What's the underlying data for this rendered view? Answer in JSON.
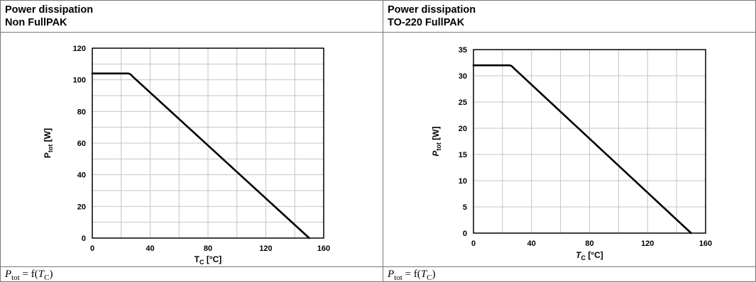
{
  "panels": [
    {
      "header_line1": "Power dissipation",
      "header_line2": "Non FullPAK",
      "formula": {
        "lhs_var": "P",
        "lhs_sub": "tot",
        "rhs_prefix": "= f(",
        "rhs_var": "T",
        "rhs_sub": "C",
        "rhs_suffix": ")"
      }
    },
    {
      "header_line1": "Power dissipation",
      "header_line2": "TO-220 FullPAK",
      "formula": {
        "lhs_var": "P",
        "lhs_sub": "tot",
        "rhs_prefix": "= f(",
        "rhs_var": "T",
        "rhs_sub": "C",
        "rhs_suffix": ")"
      }
    }
  ],
  "chart_data": [
    {
      "type": "line",
      "title": "Power dissipation Non FullPAK",
      "xlabel": "Tc [°C]",
      "xlabel_main": "T",
      "xlabel_sub": "C",
      "xlabel_unit": "[°C]",
      "ylabel": "Ptot [W]",
      "ylabel_main": "P",
      "ylabel_sub": "tot",
      "ylabel_unit": "[W]",
      "xlim": [
        0,
        160
      ],
      "ylim": [
        0,
        120
      ],
      "xticks": [
        0,
        40,
        80,
        120,
        160
      ],
      "yticks": [
        0,
        20,
        40,
        60,
        80,
        100,
        120
      ],
      "x_grid_step": 20,
      "y_grid_step": 10,
      "grid": true,
      "series": [
        {
          "x": [
            0,
            25,
            26,
            27,
            28,
            150
          ],
          "y": [
            104,
            104,
            103.7,
            103,
            102,
            0
          ]
        }
      ]
    },
    {
      "type": "line",
      "title": "Power dissipation TO-220 FullPAK",
      "xlabel": "Tc [°C]",
      "xlabel_main": "T",
      "xlabel_sub": "C",
      "xlabel_unit": "[°C]",
      "ylabel": "Ptot [W]",
      "ylabel_main": "P",
      "ylabel_sub": "tot",
      "ylabel_unit": "[W]",
      "xlim": [
        0,
        160
      ],
      "ylim": [
        0,
        35
      ],
      "xticks": [
        0,
        40,
        80,
        120,
        160
      ],
      "yticks": [
        0,
        5,
        10,
        15,
        20,
        25,
        30,
        35
      ],
      "x_grid_step": 20,
      "y_grid_step": 5,
      "grid": true,
      "series": [
        {
          "x": [
            0,
            25,
            26,
            27,
            28,
            150
          ],
          "y": [
            32,
            32,
            31.9,
            31.7,
            31.4,
            0
          ]
        }
      ]
    }
  ]
}
